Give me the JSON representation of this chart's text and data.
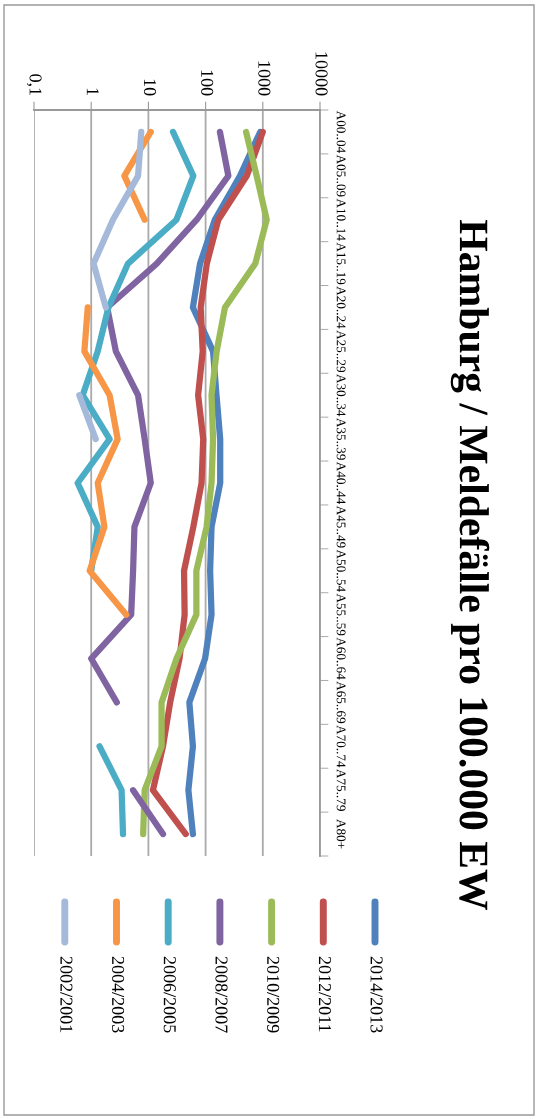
{
  "chart_data": {
    "type": "line",
    "orientation": "horizontal",
    "title": "Hamburg / Meldefälle pro 100.000 EW",
    "categories": [
      "A00..04",
      "A05..09",
      "A10..14",
      "A15..19",
      "A20..24",
      "A25..29",
      "A30..34",
      "A35..39",
      "A40..44",
      "A45..49",
      "A50..54",
      "A55..59",
      "A60..64",
      "A65..69",
      "A70..74",
      "A75..79",
      "A80+"
    ],
    "series": [
      {
        "name": "2014/2013",
        "color": "#4f81bd",
        "values": [
          900,
          400,
          145,
          80,
          60,
          135,
          155,
          180,
          180,
          127,
          120,
          127,
          98,
          52,
          60,
          50,
          60
        ]
      },
      {
        "name": "2012/2011",
        "color": "#c0504d",
        "values": [
          1000,
          525,
          167,
          105,
          82,
          89,
          74,
          91,
          85,
          61,
          42,
          43,
          35,
          24,
          18,
          12,
          45
        ]
      },
      {
        "name": "2010/2009",
        "color": "#9bbb59",
        "values": [
          510,
          780,
          1170,
          740,
          218,
          156,
          127,
          135,
          127,
          104,
          69,
          69,
          31,
          17,
          17,
          8.6,
          8.1
        ]
      },
      {
        "name": "2008/2007",
        "color": "#8064a2",
        "values": [
          178,
          250,
          70,
          14,
          1.9,
          2.7,
          6.6,
          8.6,
          11,
          5.7,
          5.4,
          5.0,
          1.0,
          2.8,
          null,
          5.4,
          18
        ]
      },
      {
        "name": "2006/2005",
        "color": "#4bacc6",
        "values": [
          27,
          61,
          31,
          4.4,
          2.0,
          1.3,
          0.71,
          2.1,
          0.58,
          1.3,
          1.0,
          null,
          null,
          null,
          1.4,
          3.4,
          3.6
        ]
      },
      {
        "name": "2004/2003",
        "color": "#f79646",
        "values": [
          11,
          3.8,
          8.6,
          null,
          0.87,
          0.76,
          2.1,
          2.9,
          1.3,
          1.7,
          0.94,
          4.1,
          null,
          null,
          null,
          null,
          null
        ]
      },
      {
        "name": "2002/2001",
        "color": "#a5b9da",
        "values": [
          7.5,
          6.6,
          2.4,
          1.1,
          1.8,
          null,
          0.62,
          1.2,
          null,
          null,
          null,
          null,
          null,
          null,
          null,
          null,
          null
        ]
      }
    ],
    "log": "x",
    "xlim": [
      0.1,
      10000
    ],
    "xticks": [
      {
        "value": 0.1,
        "label": "0,1"
      },
      1,
      10,
      100,
      1000,
      10000
    ],
    "grid": "x",
    "legend": "bottom"
  }
}
